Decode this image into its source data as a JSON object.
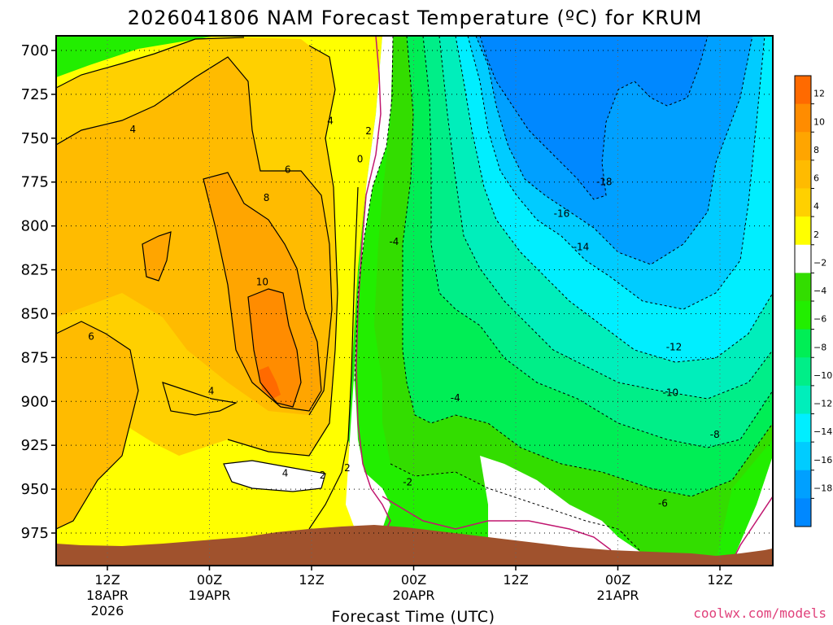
{
  "colors": {
    "credit": "#e0407a",
    "terrain": "#a0522d",
    "freezing_line": "#c0166f"
  },
  "chart_data": {
    "type": "contour",
    "title": "2026041806 NAM Forecast Temperature (ºC) for KRUM",
    "xlabel": "Forecast Time (UTC)",
    "ylabel": "",
    "x_range_hours": [
      0,
      84
    ],
    "ylim": [
      990,
      690
    ],
    "y_ticks": [
      700,
      725,
      750,
      775,
      800,
      825,
      850,
      875,
      900,
      925,
      950,
      975
    ],
    "x_ticks": [
      {
        "hour": 6,
        "line1": "12Z",
        "line2": "18APR",
        "line3": "2026"
      },
      {
        "hour": 18,
        "line1": "00Z",
        "line2": "19APR",
        "line3": ""
      },
      {
        "hour": 30,
        "line1": "12Z",
        "line2": "",
        "line3": ""
      },
      {
        "hour": 42,
        "line1": "00Z",
        "line2": "20APR",
        "line3": ""
      },
      {
        "hour": 54,
        "line1": "12Z",
        "line2": "",
        "line3": ""
      },
      {
        "hour": 66,
        "line1": "00Z",
        "line2": "21APR",
        "line3": ""
      },
      {
        "hour": 78,
        "line1": "12Z",
        "line2": "",
        "line3": ""
      }
    ],
    "colorbar": {
      "labels": [
        "12",
        "10",
        "8",
        "6",
        "4",
        "2",
        "−2",
        "−4",
        "−6",
        "−8",
        "−10",
        "−12",
        "−14",
        "−16",
        "−18"
      ],
      "colors": [
        "#ff6a00",
        "#ff8c00",
        "#ffa500",
        "#ffbb00",
        "#ffd000",
        "#ffff00",
        "#ffffff",
        "#33dd00",
        "#22ee00",
        "#00ee55",
        "#00ee88",
        "#00eebb",
        "#00eeff",
        "#00ccff",
        "#00a0ff",
        "#0088ff"
      ]
    },
    "contour_labels": [
      {
        "text": "4",
        "hour": 9.0,
        "p": 745
      },
      {
        "text": "4",
        "hour": 32.2,
        "p": 740
      },
      {
        "text": "2",
        "hour": 36.7,
        "p": 746
      },
      {
        "text": "0",
        "hour": 35.7,
        "p": 762
      },
      {
        "text": "6",
        "hour": 27.2,
        "p": 768
      },
      {
        "text": "8",
        "hour": 24.7,
        "p": 784
      },
      {
        "text": "10",
        "hour": 24.2,
        "p": 832
      },
      {
        "text": "-4",
        "hour": 39.7,
        "p": 809
      },
      {
        "text": "6",
        "hour": 4.1,
        "p": 863
      },
      {
        "text": "4",
        "hour": 18.2,
        "p": 894
      },
      {
        "text": "-4",
        "hour": 46.9,
        "p": 898
      },
      {
        "text": "4",
        "hour": 26.9,
        "p": 941
      },
      {
        "text": "2",
        "hour": 31.3,
        "p": 942
      },
      {
        "text": "2",
        "hour": 34.2,
        "p": 938
      },
      {
        "text": "-2",
        "hour": 41.3,
        "p": 946
      },
      {
        "text": "-18",
        "hour": 64.4,
        "p": 775
      },
      {
        "text": "-16",
        "hour": 59.4,
        "p": 793
      },
      {
        "text": "-14",
        "hour": 61.7,
        "p": 812
      },
      {
        "text": "-12",
        "hour": 72.6,
        "p": 869
      },
      {
        "text": "-10",
        "hour": 72.2,
        "p": 895
      },
      {
        "text": "-8",
        "hour": 77.4,
        "p": 919
      },
      {
        "text": "-6",
        "hour": 71.3,
        "p": 958
      }
    ]
  },
  "footer": {
    "credit": "coolwx.com/models"
  }
}
